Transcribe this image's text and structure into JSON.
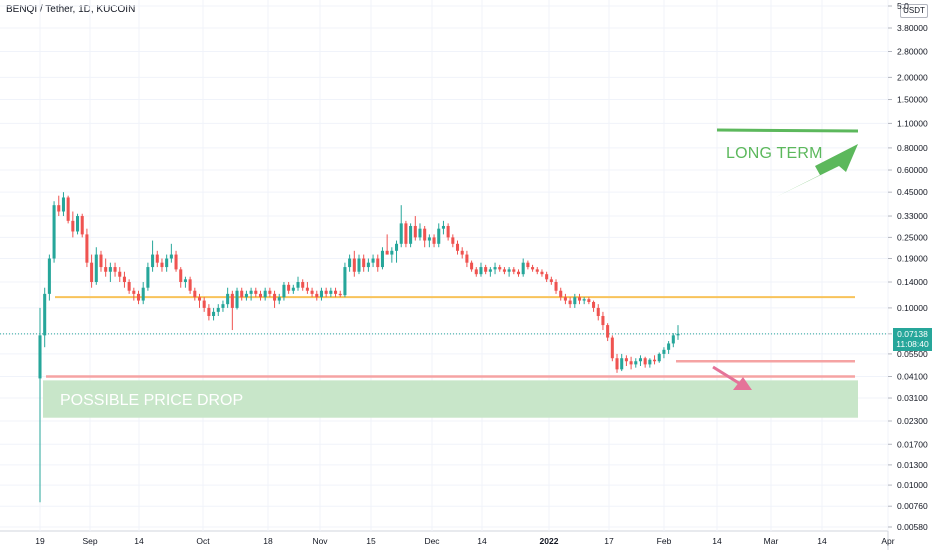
{
  "header": {
    "title": "BENQI / Tether, 1D, KUCOIN"
  },
  "y_axis": {
    "unit_label": "USDT"
  },
  "price_tag": {
    "price": "0.07138",
    "countdown": "11:08:40"
  },
  "annotations": {
    "long_term": "LONG TERM",
    "possible_drop": "POSSIBLE PRICE DROP"
  },
  "colors": {
    "up": "#26a69a",
    "down": "#ef5350",
    "support_line": "#f8c35a",
    "target_line": "#f5a3a3",
    "zone_fill": "#c8e6c9",
    "annotation_green": "#5cb85c",
    "arrow_pink": "#e57399",
    "current_price_line": "#26a69a"
  },
  "chart_data": {
    "type": "candlestick",
    "title": "BENQI / Tether, 1D, KUCOIN",
    "scale": "log",
    "y_ticks": [
      "5.0",
      "3.80000",
      "2.80000",
      "2.00000",
      "1.50000",
      "1.10000",
      "0.80000",
      "0.60000",
      "0.45000",
      "0.33000",
      "0.25000",
      "0.19000",
      "0.14000",
      "0.10000",
      "0.07138",
      "0.05500",
      "0.04100",
      "0.03100",
      "0.02300",
      "0.01700",
      "0.01300",
      "0.01000",
      "0.00760",
      "0.00580"
    ],
    "x_ticks": [
      "19",
      "Sep",
      "14",
      "Oct",
      "18",
      "Nov",
      "15",
      "Dec",
      "14",
      "2022",
      "17",
      "Feb",
      "14",
      "Mar",
      "14",
      "Apr"
    ],
    "ohlc": [
      [
        0.04,
        0.1,
        0.008,
        0.07
      ],
      [
        0.07,
        0.13,
        0.06,
        0.12
      ],
      [
        0.12,
        0.2,
        0.11,
        0.19
      ],
      [
        0.19,
        0.4,
        0.18,
        0.38
      ],
      [
        0.38,
        0.43,
        0.33,
        0.35
      ],
      [
        0.35,
        0.45,
        0.33,
        0.42
      ],
      [
        0.42,
        0.43,
        0.3,
        0.31
      ],
      [
        0.31,
        0.35,
        0.25,
        0.27
      ],
      [
        0.27,
        0.34,
        0.26,
        0.33
      ],
      [
        0.33,
        0.34,
        0.25,
        0.26
      ],
      [
        0.26,
        0.28,
        0.17,
        0.18
      ],
      [
        0.18,
        0.2,
        0.13,
        0.14
      ],
      [
        0.14,
        0.22,
        0.135,
        0.2
      ],
      [
        0.2,
        0.21,
        0.16,
        0.17
      ],
      [
        0.17,
        0.19,
        0.15,
        0.16
      ],
      [
        0.16,
        0.18,
        0.14,
        0.17
      ],
      [
        0.17,
        0.18,
        0.15,
        0.16
      ],
      [
        0.16,
        0.17,
        0.14,
        0.15
      ],
      [
        0.15,
        0.16,
        0.13,
        0.14
      ],
      [
        0.14,
        0.145,
        0.12,
        0.125
      ],
      [
        0.125,
        0.13,
        0.11,
        0.12
      ],
      [
        0.12,
        0.125,
        0.105,
        0.11
      ],
      [
        0.11,
        0.14,
        0.105,
        0.13
      ],
      [
        0.13,
        0.18,
        0.125,
        0.17
      ],
      [
        0.17,
        0.24,
        0.16,
        0.2
      ],
      [
        0.2,
        0.21,
        0.17,
        0.18
      ],
      [
        0.18,
        0.19,
        0.16,
        0.17
      ],
      [
        0.17,
        0.2,
        0.16,
        0.19
      ],
      [
        0.19,
        0.23,
        0.18,
        0.2
      ],
      [
        0.2,
        0.21,
        0.16,
        0.165
      ],
      [
        0.165,
        0.17,
        0.13,
        0.14
      ],
      [
        0.14,
        0.15,
        0.13,
        0.145
      ],
      [
        0.145,
        0.15,
        0.12,
        0.125
      ],
      [
        0.125,
        0.13,
        0.11,
        0.115
      ],
      [
        0.115,
        0.12,
        0.1,
        0.11
      ],
      [
        0.11,
        0.115,
        0.095,
        0.1
      ],
      [
        0.1,
        0.105,
        0.085,
        0.09
      ],
      [
        0.09,
        0.1,
        0.085,
        0.095
      ],
      [
        0.095,
        0.105,
        0.09,
        0.1
      ],
      [
        0.1,
        0.11,
        0.095,
        0.105
      ],
      [
        0.105,
        0.13,
        0.1,
        0.12
      ],
      [
        0.12,
        0.125,
        0.075,
        0.1
      ],
      [
        0.1,
        0.13,
        0.098,
        0.125
      ],
      [
        0.125,
        0.13,
        0.11,
        0.115
      ],
      [
        0.115,
        0.125,
        0.11,
        0.12
      ],
      [
        0.12,
        0.13,
        0.11,
        0.125
      ],
      [
        0.125,
        0.13,
        0.115,
        0.12
      ],
      [
        0.12,
        0.125,
        0.11,
        0.115
      ],
      [
        0.115,
        0.13,
        0.11,
        0.125
      ],
      [
        0.125,
        0.13,
        0.115,
        0.12
      ],
      [
        0.12,
        0.125,
        0.1,
        0.11
      ],
      [
        0.11,
        0.12,
        0.105,
        0.115
      ],
      [
        0.115,
        0.14,
        0.11,
        0.135
      ],
      [
        0.135,
        0.14,
        0.12,
        0.125
      ],
      [
        0.125,
        0.135,
        0.12,
        0.13
      ],
      [
        0.13,
        0.15,
        0.125,
        0.14
      ],
      [
        0.14,
        0.145,
        0.125,
        0.13
      ],
      [
        0.13,
        0.14,
        0.12,
        0.125
      ],
      [
        0.125,
        0.13,
        0.115,
        0.12
      ],
      [
        0.12,
        0.125,
        0.11,
        0.115
      ],
      [
        0.115,
        0.13,
        0.11,
        0.125
      ],
      [
        0.125,
        0.13,
        0.115,
        0.12
      ],
      [
        0.12,
        0.13,
        0.115,
        0.125
      ],
      [
        0.125,
        0.13,
        0.115,
        0.12
      ],
      [
        0.12,
        0.125,
        0.115,
        0.118
      ],
      [
        0.118,
        0.18,
        0.115,
        0.17
      ],
      [
        0.17,
        0.2,
        0.16,
        0.19
      ],
      [
        0.19,
        0.21,
        0.15,
        0.16
      ],
      [
        0.16,
        0.2,
        0.155,
        0.19
      ],
      [
        0.19,
        0.2,
        0.16,
        0.17
      ],
      [
        0.17,
        0.19,
        0.16,
        0.18
      ],
      [
        0.18,
        0.2,
        0.17,
        0.19
      ],
      [
        0.19,
        0.2,
        0.16,
        0.17
      ],
      [
        0.17,
        0.22,
        0.165,
        0.21
      ],
      [
        0.21,
        0.26,
        0.2,
        0.2
      ],
      [
        0.2,
        0.22,
        0.18,
        0.21
      ],
      [
        0.21,
        0.24,
        0.18,
        0.23
      ],
      [
        0.23,
        0.38,
        0.22,
        0.3
      ],
      [
        0.3,
        0.31,
        0.22,
        0.23
      ],
      [
        0.23,
        0.3,
        0.22,
        0.29
      ],
      [
        0.29,
        0.33,
        0.24,
        0.25
      ],
      [
        0.25,
        0.3,
        0.24,
        0.28
      ],
      [
        0.28,
        0.29,
        0.22,
        0.24
      ],
      [
        0.24,
        0.26,
        0.22,
        0.25
      ],
      [
        0.25,
        0.26,
        0.22,
        0.23
      ],
      [
        0.23,
        0.3,
        0.22,
        0.28
      ],
      [
        0.28,
        0.31,
        0.26,
        0.29
      ],
      [
        0.29,
        0.3,
        0.24,
        0.25
      ],
      [
        0.25,
        0.26,
        0.22,
        0.23
      ],
      [
        0.23,
        0.24,
        0.2,
        0.21
      ],
      [
        0.21,
        0.22,
        0.19,
        0.2
      ],
      [
        0.2,
        0.21,
        0.17,
        0.18
      ],
      [
        0.18,
        0.185,
        0.16,
        0.165
      ],
      [
        0.165,
        0.17,
        0.15,
        0.155
      ],
      [
        0.155,
        0.18,
        0.15,
        0.17
      ],
      [
        0.17,
        0.175,
        0.155,
        0.16
      ],
      [
        0.16,
        0.17,
        0.15,
        0.165
      ],
      [
        0.165,
        0.18,
        0.155,
        0.17
      ],
      [
        0.17,
        0.175,
        0.16,
        0.165
      ],
      [
        0.165,
        0.17,
        0.155,
        0.16
      ],
      [
        0.16,
        0.17,
        0.15,
        0.165
      ],
      [
        0.165,
        0.17,
        0.155,
        0.16
      ],
      [
        0.16,
        0.165,
        0.15,
        0.155
      ],
      [
        0.155,
        0.19,
        0.15,
        0.18
      ],
      [
        0.18,
        0.185,
        0.165,
        0.17
      ],
      [
        0.17,
        0.175,
        0.16,
        0.165
      ],
      [
        0.165,
        0.17,
        0.155,
        0.16
      ],
      [
        0.16,
        0.165,
        0.15,
        0.155
      ],
      [
        0.155,
        0.16,
        0.14,
        0.145
      ],
      [
        0.145,
        0.15,
        0.135,
        0.14
      ],
      [
        0.14,
        0.145,
        0.12,
        0.125
      ],
      [
        0.125,
        0.13,
        0.11,
        0.115
      ],
      [
        0.115,
        0.12,
        0.105,
        0.11
      ],
      [
        0.11,
        0.115,
        0.1,
        0.105
      ],
      [
        0.105,
        0.12,
        0.1,
        0.115
      ],
      [
        0.115,
        0.12,
        0.105,
        0.11
      ],
      [
        0.11,
        0.115,
        0.105,
        0.112
      ],
      [
        0.112,
        0.115,
        0.105,
        0.108
      ],
      [
        0.108,
        0.11,
        0.095,
        0.1
      ],
      [
        0.1,
        0.105,
        0.085,
        0.09
      ],
      [
        0.09,
        0.095,
        0.075,
        0.08
      ],
      [
        0.08,
        0.082,
        0.065,
        0.068
      ],
      [
        0.068,
        0.07,
        0.05,
        0.052
      ],
      [
        0.052,
        0.055,
        0.043,
        0.045
      ],
      [
        0.045,
        0.055,
        0.044,
        0.052
      ],
      [
        0.052,
        0.054,
        0.047,
        0.05
      ],
      [
        0.05,
        0.053,
        0.045,
        0.048
      ],
      [
        0.048,
        0.052,
        0.046,
        0.05
      ],
      [
        0.05,
        0.054,
        0.047,
        0.052
      ],
      [
        0.052,
        0.053,
        0.046,
        0.048
      ],
      [
        0.048,
        0.052,
        0.046,
        0.051
      ],
      [
        0.051,
        0.054,
        0.048,
        0.05
      ],
      [
        0.05,
        0.056,
        0.049,
        0.055
      ],
      [
        0.055,
        0.06,
        0.052,
        0.058
      ],
      [
        0.058,
        0.065,
        0.055,
        0.063
      ],
      [
        0.063,
        0.072,
        0.06,
        0.07
      ],
      [
        0.07,
        0.08,
        0.066,
        0.0714
      ]
    ],
    "levels": [
      {
        "price": 0.115,
        "color": "#f8c35a"
      },
      {
        "price": 0.05,
        "color": "#f5a3a3"
      },
      {
        "price": 0.041,
        "color": "#f5a3a3"
      }
    ],
    "zones": [
      {
        "from": 0.024,
        "to": 0.039
      }
    ],
    "current_price": 0.07138
  }
}
